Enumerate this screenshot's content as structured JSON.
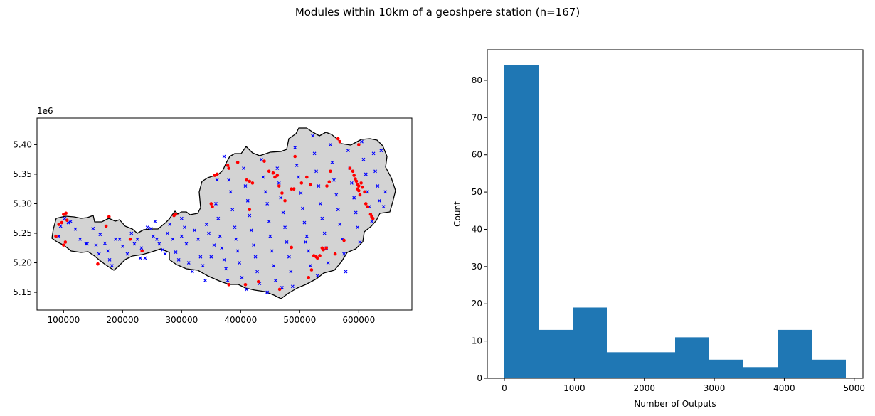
{
  "figure": {
    "title": "Modules within 10km of a geoshpere station (n=167)"
  },
  "chart_data": [
    {
      "type": "scatter",
      "subtype": "map",
      "xlim": [
        55000,
        690000
      ],
      "ylim": [
        5120000,
        5445000
      ],
      "x_ticks": [
        100000,
        200000,
        300000,
        400000,
        500000,
        600000
      ],
      "x_tick_labels": [
        "100000",
        "200000",
        "300000",
        "400000",
        "500000",
        "600000"
      ],
      "y_ticks": [
        5150000,
        5200000,
        5250000,
        5300000,
        5350000,
        5400000
      ],
      "y_tick_labels": [
        "5.15",
        "5.20",
        "5.25",
        "5.30",
        "5.35",
        "5.40"
      ],
      "y_offset_label": "1e6",
      "region_fill": "#d3d3d3",
      "region_edge": "#000000",
      "series": [
        {
          "marker": "x",
          "color": "#0000ff",
          "points": [
            [
              92000,
              5245000
            ],
            [
              95000,
              5262000
            ],
            [
              102000,
              5275000
            ],
            [
              108000,
              5268000
            ],
            [
              112000,
              5270000
            ],
            [
              120000,
              5257000
            ],
            [
              128000,
              5240000
            ],
            [
              138000,
              5232000
            ],
            [
              140000,
              5232000
            ],
            [
              150000,
              5258000
            ],
            [
              155000,
              5230000
            ],
            [
              160000,
              5215000
            ],
            [
              162000,
              5248000
            ],
            [
              170000,
              5233000
            ],
            [
              175000,
              5220000
            ],
            [
              178000,
              5205000
            ],
            [
              182000,
              5195000
            ],
            [
              188000,
              5240000
            ],
            [
              195000,
              5240000
            ],
            [
              200000,
              5228000
            ],
            [
              208000,
              5215000
            ],
            [
              215000,
              5250000
            ],
            [
              220000,
              5232000
            ],
            [
              225000,
              5240000
            ],
            [
              232000,
              5225000
            ],
            [
              238000,
              5208000
            ],
            [
              242000,
              5260000
            ],
            [
              248000,
              5258000
            ],
            [
              252000,
              5245000
            ],
            [
              258000,
              5240000
            ],
            [
              262000,
              5232000
            ],
            [
              268000,
              5222000
            ],
            [
              272000,
              5215000
            ],
            [
              276000,
              5250000
            ],
            [
              280000,
              5265000
            ],
            [
              285000,
              5240000
            ],
            [
              290000,
              5218000
            ],
            [
              295000,
              5205000
            ],
            [
              300000,
              5245000
            ],
            [
              305000,
              5260000
            ],
            [
              308000,
              5232000
            ],
            [
              312000,
              5200000
            ],
            [
              318000,
              5185000
            ],
            [
              322000,
              5255000
            ],
            [
              328000,
              5240000
            ],
            [
              332000,
              5210000
            ],
            [
              336000,
              5195000
            ],
            [
              340000,
              5170000
            ],
            [
              342000,
              5265000
            ],
            [
              346000,
              5250000
            ],
            [
              350000,
              5210000
            ],
            [
              355000,
              5230000
            ],
            [
              358000,
              5300000
            ],
            [
              362000,
              5275000
            ],
            [
              365000,
              5245000
            ],
            [
              368000,
              5225000
            ],
            [
              372000,
              5205000
            ],
            [
              375000,
              5190000
            ],
            [
              378000,
              5170000
            ],
            [
              380000,
              5340000
            ],
            [
              383000,
              5320000
            ],
            [
              386000,
              5290000
            ],
            [
              390000,
              5260000
            ],
            [
              392000,
              5240000
            ],
            [
              395000,
              5220000
            ],
            [
              398000,
              5200000
            ],
            [
              402000,
              5175000
            ],
            [
              405000,
              5360000
            ],
            [
              408000,
              5330000
            ],
            [
              412000,
              5305000
            ],
            [
              415000,
              5280000
            ],
            [
              418000,
              5255000
            ],
            [
              422000,
              5230000
            ],
            [
              425000,
              5210000
            ],
            [
              428000,
              5185000
            ],
            [
              432000,
              5165000
            ],
            [
              435000,
              5375000
            ],
            [
              438000,
              5345000
            ],
            [
              442000,
              5320000
            ],
            [
              445000,
              5300000
            ],
            [
              448000,
              5270000
            ],
            [
              450000,
              5245000
            ],
            [
              453000,
              5220000
            ],
            [
              456000,
              5195000
            ],
            [
              459000,
              5170000
            ],
            [
              462000,
              5360000
            ],
            [
              465000,
              5335000
            ],
            [
              468000,
              5310000
            ],
            [
              472000,
              5285000
            ],
            [
              475000,
              5260000
            ],
            [
              478000,
              5235000
            ],
            [
              482000,
              5210000
            ],
            [
              485000,
              5185000
            ],
            [
              488000,
              5160000
            ],
            [
              492000,
              5395000
            ],
            [
              495000,
              5365000
            ],
            [
              498000,
              5345000
            ],
            [
              502000,
              5318000
            ],
            [
              505000,
              5292000
            ],
            [
              508000,
              5268000
            ],
            [
              512000,
              5245000
            ],
            [
              515000,
              5220000
            ],
            [
              518000,
              5195000
            ],
            [
              522000,
              5415000
            ],
            [
              525000,
              5385000
            ],
            [
              528000,
              5355000
            ],
            [
              532000,
              5330000
            ],
            [
              535000,
              5300000
            ],
            [
              538000,
              5275000
            ],
            [
              542000,
              5250000
            ],
            [
              545000,
              5225000
            ],
            [
              548000,
              5200000
            ],
            [
              552000,
              5400000
            ],
            [
              555000,
              5370000
            ],
            [
              558000,
              5340000
            ],
            [
              562000,
              5315000
            ],
            [
              565000,
              5290000
            ],
            [
              568000,
              5265000
            ],
            [
              572000,
              5240000
            ],
            [
              575000,
              5215000
            ],
            [
              578000,
              5185000
            ],
            [
              582000,
              5390000
            ],
            [
              585000,
              5360000
            ],
            [
              588000,
              5335000
            ],
            [
              592000,
              5310000
            ],
            [
              595000,
              5285000
            ],
            [
              598000,
              5260000
            ],
            [
              602000,
              5235000
            ],
            [
              605000,
              5405000
            ],
            [
              608000,
              5375000
            ],
            [
              612000,
              5350000
            ],
            [
              615000,
              5320000
            ],
            [
              618000,
              5295000
            ],
            [
              622000,
              5270000
            ],
            [
              625000,
              5385000
            ],
            [
              628000,
              5355000
            ],
            [
              632000,
              5330000
            ],
            [
              635000,
              5305000
            ],
            [
              638000,
              5390000
            ],
            [
              642000,
              5295000
            ],
            [
              645000,
              5320000
            ],
            [
              410000,
              5155000
            ],
            [
              445000,
              5150000
            ],
            [
              470000,
              5158000
            ],
            [
              530000,
              5178000
            ],
            [
              510000,
              5235000
            ],
            [
              360000,
              5340000
            ],
            [
              372000,
              5380000
            ],
            [
              300000,
              5275000
            ],
            [
              255000,
              5270000
            ],
            [
              230000,
              5208000
            ]
          ]
        },
        {
          "marker": "o",
          "color": "#ff0000",
          "points": [
            [
              87000,
              5245000
            ],
            [
              92000,
              5265000
            ],
            [
              97000,
              5268000
            ],
            [
              100000,
              5282000
            ],
            [
              104000,
              5284000
            ],
            [
              106000,
              5272000
            ],
            [
              100000,
              5230000
            ],
            [
              103000,
              5235000
            ],
            [
              158000,
              5198000
            ],
            [
              172000,
              5262000
            ],
            [
              177000,
              5278000
            ],
            [
              213000,
              5240000
            ],
            [
              233000,
              5220000
            ],
            [
              287000,
              5280000
            ],
            [
              290000,
              5282000
            ],
            [
              350000,
              5300000
            ],
            [
              352000,
              5295000
            ],
            [
              356000,
              5348000
            ],
            [
              360000,
              5350000
            ],
            [
              378000,
              5365000
            ],
            [
              380000,
              5360000
            ],
            [
              395000,
              5370000
            ],
            [
              410000,
              5340000
            ],
            [
              415000,
              5338000
            ],
            [
              415000,
              5290000
            ],
            [
              420000,
              5335000
            ],
            [
              440000,
              5372000
            ],
            [
              448000,
              5355000
            ],
            [
              455000,
              5352000
            ],
            [
              458000,
              5345000
            ],
            [
              462000,
              5348000
            ],
            [
              465000,
              5330000
            ],
            [
              470000,
              5318000
            ],
            [
              475000,
              5305000
            ],
            [
              486000,
              5325000
            ],
            [
              490000,
              5325000
            ],
            [
              492000,
              5380000
            ],
            [
              503000,
              5335000
            ],
            [
              512000,
              5345000
            ],
            [
              518000,
              5332000
            ],
            [
              524000,
              5212000
            ],
            [
              528000,
              5210000
            ],
            [
              530000,
              5208000
            ],
            [
              534000,
              5212000
            ],
            [
              538000,
              5225000
            ],
            [
              540000,
              5222000
            ],
            [
              545000,
              5225000
            ],
            [
              550000,
              5337000
            ],
            [
              546000,
              5330000
            ],
            [
              552000,
              5355000
            ],
            [
              565000,
              5410000
            ],
            [
              568000,
              5405000
            ],
            [
              560000,
              5215000
            ],
            [
              575000,
              5238000
            ],
            [
              585000,
              5360000
            ],
            [
              590000,
              5355000
            ],
            [
              592000,
              5348000
            ],
            [
              594000,
              5342000
            ],
            [
              596000,
              5338000
            ],
            [
              598000,
              5332000
            ],
            [
              598000,
              5325000
            ],
            [
              600000,
              5330000
            ],
            [
              600000,
              5322000
            ],
            [
              602000,
              5315000
            ],
            [
              604000,
              5335000
            ],
            [
              606000,
              5328000
            ],
            [
              610000,
              5320000
            ],
            [
              612000,
              5300000
            ],
            [
              615000,
              5295000
            ],
            [
              620000,
              5282000
            ],
            [
              622000,
              5278000
            ],
            [
              624000,
              5275000
            ],
            [
              408000,
              5163000
            ],
            [
              380000,
              5163000
            ],
            [
              430000,
              5168000
            ],
            [
              466000,
              5155000
            ],
            [
              486000,
              5226000
            ],
            [
              515000,
              5175000
            ],
            [
              520000,
              5188000
            ],
            [
              600000,
              5400000
            ]
          ]
        }
      ]
    },
    {
      "type": "bar",
      "subtype": "histogram",
      "bin_edges": [
        0,
        488,
        976,
        1464,
        1952,
        2440,
        2928,
        3416,
        3904,
        4392,
        4880
      ],
      "values": [
        84,
        13,
        19,
        7,
        7,
        11,
        5,
        3,
        13,
        5
      ],
      "color": "#1f77b4",
      "xlim": [
        -244,
        5124
      ],
      "ylim": [
        0,
        88.2
      ],
      "x_ticks": [
        0,
        1000,
        2000,
        3000,
        4000,
        5000
      ],
      "x_tick_labels": [
        "0",
        "1000",
        "2000",
        "3000",
        "4000",
        "5000"
      ],
      "y_ticks": [
        0,
        10,
        20,
        30,
        40,
        50,
        60,
        70,
        80
      ],
      "y_tick_labels": [
        "0",
        "10",
        "20",
        "30",
        "40",
        "50",
        "60",
        "70",
        "80"
      ],
      "xlabel": "Number of Outputs",
      "ylabel": "Count"
    }
  ]
}
